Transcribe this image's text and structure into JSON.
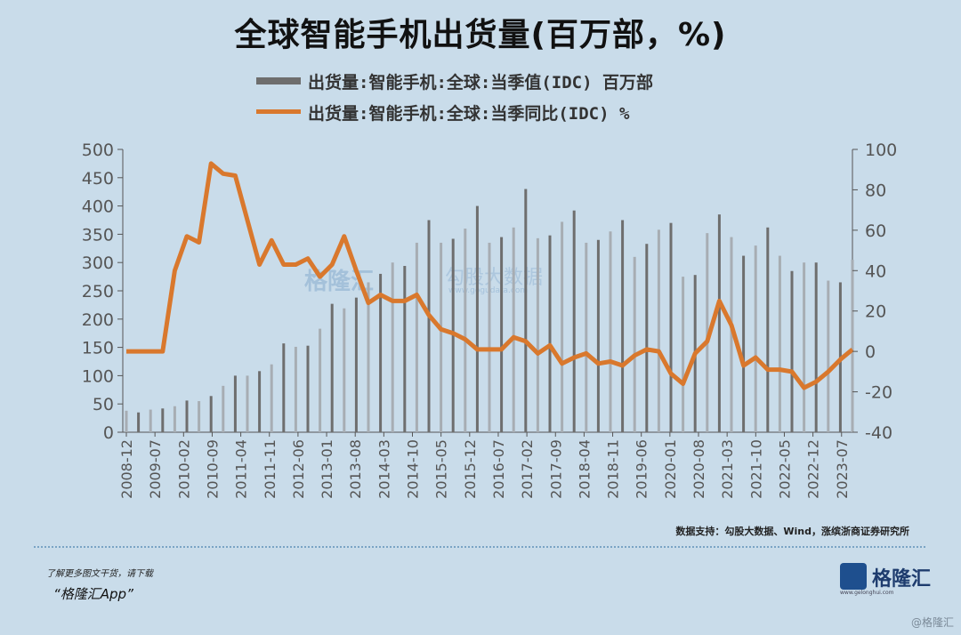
{
  "header": {
    "title": "全球智能手机出货量(百万部，%)"
  },
  "legend": {
    "bar_label": "出货量:智能手机:全球:当季值(IDC) 百万部",
    "line_label": "出货量:智能手机:全球:当季同比(IDC) %"
  },
  "source": "数据支持：勾股大数据、Wind，涨缤浙商证券研究所",
  "footer": {
    "line1": "了解更多图文干货，请下载",
    "line2": "“格隆汇App”"
  },
  "logo": {
    "text": "格隆汇",
    "sub": "www.gelonghui.com"
  },
  "corner_mark": "@格隆汇",
  "watermark": {
    "brand": "格隆汇",
    "data_brand": "勾股大数据",
    "data_url": "www.gogudata.com"
  },
  "colors": {
    "bar": "#6e6e6e",
    "bar_light": "#a7adb3",
    "line": "#d9782d",
    "background": "#c9dcea"
  },
  "chart_data": {
    "type": "bar+line",
    "left_axis": {
      "ylim": [
        0,
        500
      ],
      "ticks": [
        0,
        50,
        100,
        150,
        200,
        250,
        300,
        350,
        400,
        450,
        500
      ]
    },
    "right_axis": {
      "ylim": [
        -40,
        100
      ],
      "ticks": [
        -40,
        -20,
        0,
        20,
        40,
        60,
        80,
        100
      ]
    },
    "x_tick_labels": [
      "2008-12",
      "2009-07",
      "2010-02",
      "2010-09",
      "2011-04",
      "2011-11",
      "2012-06",
      "2013-01",
      "2013-08",
      "2014-03",
      "2014-10",
      "2015-05",
      "2015-12",
      "2016-07",
      "2017-02",
      "2017-09",
      "2018-04",
      "2018-11",
      "2019-06",
      "2020-01",
      "2020-08",
      "2021-03",
      "2021-10",
      "2022-05",
      "2022-12",
      "2023-07"
    ],
    "x_start": "2008-12",
    "x_end": "2023-09",
    "series": [
      {
        "name": "出货量:智能手机:全球:当季值(IDC) 百万部",
        "type": "bar",
        "axis": "left",
        "values": [
          38,
          35,
          40,
          42,
          46,
          56,
          55,
          64,
          82,
          100,
          100,
          108,
          120,
          157,
          151,
          153,
          183,
          227,
          219,
          238,
          265,
          280,
          300,
          294,
          335,
          375,
          335,
          342,
          360,
          400,
          335,
          345,
          362,
          430,
          343,
          348,
          372,
          392,
          335,
          340,
          355,
          375,
          310,
          333,
          358,
          370,
          275,
          278,
          352,
          385,
          345,
          312,
          330,
          362,
          312,
          285,
          300,
          300,
          268,
          265,
          305
        ]
      },
      {
        "name": "出货量:智能手机:全球:当季同比(IDC) %",
        "type": "line",
        "axis": "right",
        "values": [
          0,
          0,
          0,
          0,
          40,
          57,
          54,
          93,
          88,
          87,
          65,
          43,
          55,
          43,
          43,
          46,
          37,
          43,
          57,
          40,
          24,
          28,
          25,
          25,
          28,
          18,
          11,
          9,
          6,
          1,
          1,
          1,
          7,
          5,
          -1,
          3,
          -6,
          -3,
          -1,
          -6,
          -5,
          -7,
          -2,
          1,
          0,
          -11,
          -16,
          -1,
          5,
          25,
          13,
          -7,
          -3,
          -9,
          -9,
          -10,
          -18,
          -15,
          -10,
          -4,
          1
        ]
      }
    ]
  }
}
